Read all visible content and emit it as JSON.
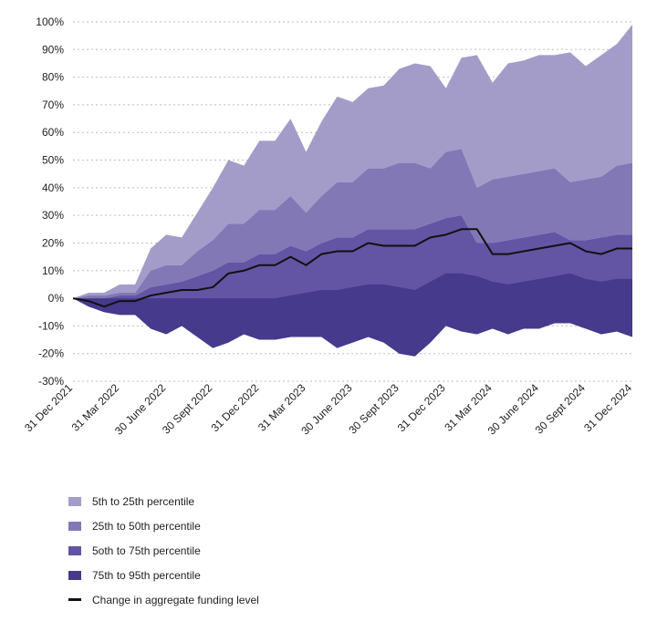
{
  "chart_data": {
    "type": "area",
    "title": "",
    "xlabel": "",
    "ylabel": "",
    "ylim": [
      -30,
      100
    ],
    "y_ticks": [
      {
        "value": 100,
        "label": "100%"
      },
      {
        "value": 90,
        "label": "90%"
      },
      {
        "value": 80,
        "label": "80%"
      },
      {
        "value": 70,
        "label": "70%"
      },
      {
        "value": 60,
        "label": "60%"
      },
      {
        "value": 50,
        "label": "50%"
      },
      {
        "value": 40,
        "label": "40%"
      },
      {
        "value": 30,
        "label": "30%"
      },
      {
        "value": 20,
        "label": "20%"
      },
      {
        "value": 10,
        "label": "10%"
      },
      {
        "value": 0,
        "label": "0%"
      },
      {
        "value": -10,
        "label": "-10%"
      },
      {
        "value": -20,
        "label": "-20%"
      },
      {
        "value": -30,
        "label": "-30%"
      }
    ],
    "x_count": 37,
    "x_ticks": [
      {
        "index": 0,
        "label": "31 Dec 2021"
      },
      {
        "index": 3,
        "label": "31 Mar 2022"
      },
      {
        "index": 6,
        "label": "30 June 2022"
      },
      {
        "index": 9,
        "label": "30 Sept 2022"
      },
      {
        "index": 12,
        "label": "31 Dec 2022"
      },
      {
        "index": 15,
        "label": "31 Mar 2023"
      },
      {
        "index": 18,
        "label": "30 June 2023"
      },
      {
        "index": 21,
        "label": "30 Sept 2023"
      },
      {
        "index": 24,
        "label": "31 Dec 2023"
      },
      {
        "index": 27,
        "label": "31 Mar 2024"
      },
      {
        "index": 30,
        "label": "30 June 2024"
      },
      {
        "index": 33,
        "label": "30 Sept 2024"
      },
      {
        "index": 36,
        "label": "31 Dec 2024"
      }
    ],
    "bands": [
      {
        "name": "5th to 25th percentile",
        "color": "#a39cc8",
        "upper": [
          0,
          2,
          2,
          5,
          5,
          18,
          23,
          22,
          31,
          40,
          50,
          48,
          57,
          57,
          65,
          53,
          64,
          73,
          71,
          76,
          77,
          83,
          85,
          84,
          76,
          87,
          88,
          78,
          85,
          86,
          88,
          88,
          89,
          84,
          88,
          92,
          99
        ],
        "lower": [
          0,
          1,
          1,
          2,
          2,
          10,
          12,
          12,
          17,
          21,
          27,
          27,
          32,
          32,
          37,
          31,
          37,
          42,
          42,
          47,
          47,
          49,
          49,
          47,
          53,
          54,
          40,
          43,
          44,
          45,
          46,
          47,
          42,
          43,
          44,
          48,
          49
        ]
      },
      {
        "name": "25th to 50th percentile",
        "color": "#8278b6",
        "upper": [
          0,
          1,
          1,
          2,
          2,
          10,
          12,
          12,
          17,
          21,
          27,
          27,
          32,
          32,
          37,
          31,
          37,
          42,
          42,
          47,
          47,
          49,
          49,
          47,
          53,
          54,
          40,
          43,
          44,
          45,
          46,
          47,
          42,
          43,
          44,
          48,
          49
        ],
        "lower": [
          0,
          0,
          0,
          1,
          1,
          4,
          5,
          6,
          8,
          10,
          13,
          13,
          16,
          16,
          19,
          17,
          20,
          22,
          22,
          25,
          25,
          25,
          25,
          27,
          29,
          30,
          20,
          20,
          21,
          22,
          23,
          24,
          21,
          21,
          22,
          23,
          23
        ]
      },
      {
        "name": "5oth to 75th percentile",
        "color": "#6454a4",
        "upper": [
          0,
          0,
          0,
          1,
          1,
          4,
          5,
          6,
          8,
          10,
          13,
          13,
          16,
          16,
          19,
          17,
          20,
          22,
          22,
          25,
          25,
          25,
          25,
          27,
          29,
          30,
          20,
          20,
          21,
          22,
          23,
          24,
          21,
          21,
          22,
          23,
          23
        ],
        "lower": [
          0,
          -3,
          -5,
          -6,
          -6,
          -11,
          -13,
          -10,
          -14,
          -18,
          -16,
          -13,
          -15,
          -15,
          -14,
          -14,
          -14,
          -18,
          -16,
          -14,
          -16,
          -20,
          -21,
          -16,
          -10,
          -12,
          -13,
          -11,
          -13,
          -11,
          -11,
          -9,
          -9,
          -11,
          -13,
          -12,
          -14
        ]
      },
      {
        "name": "75th to 95th percentile",
        "color": "#453a8c",
        "upper": [
          0,
          0,
          0,
          0,
          0,
          0,
          0,
          0,
          0,
          0,
          0,
          0,
          0,
          0,
          1,
          2,
          3,
          3,
          4,
          5,
          5,
          4,
          3,
          6,
          9,
          9,
          8,
          6,
          5,
          6,
          7,
          8,
          9,
          7,
          6,
          7,
          7
        ],
        "lower": [
          0,
          -3,
          -5,
          -6,
          -6,
          -11,
          -13,
          -10,
          -14,
          -18,
          -16,
          -13,
          -15,
          -15,
          -14,
          -14,
          -14,
          -18,
          -16,
          -14,
          -16,
          -20,
          -21,
          -16,
          -10,
          -12,
          -13,
          -11,
          -13,
          -11,
          -11,
          -9,
          -9,
          -11,
          -13,
          -12,
          -14
        ]
      }
    ],
    "line": {
      "name": "Change in aggregate funding level",
      "color": "#111111",
      "values": [
        0,
        -1,
        -3,
        -1,
        -1,
        1,
        2,
        3,
        3,
        4,
        9,
        10,
        12,
        12,
        15,
        12,
        16,
        17,
        17,
        20,
        19,
        19,
        19,
        22,
        23,
        25,
        25,
        16,
        16,
        17,
        18,
        19,
        20,
        17,
        16,
        18,
        18
      ]
    },
    "legend": [
      {
        "label": "5th to 25th percentile",
        "color": "#a39cc8"
      },
      {
        "label": "25th to 50th percentile",
        "color": "#8278b6"
      },
      {
        "label": "5oth to 75th percentile",
        "color": "#6454a4"
      },
      {
        "label": "75th to 95th percentile",
        "color": "#453a8c"
      },
      {
        "label": "Change in aggregate funding level",
        "color": "#111111"
      }
    ]
  }
}
